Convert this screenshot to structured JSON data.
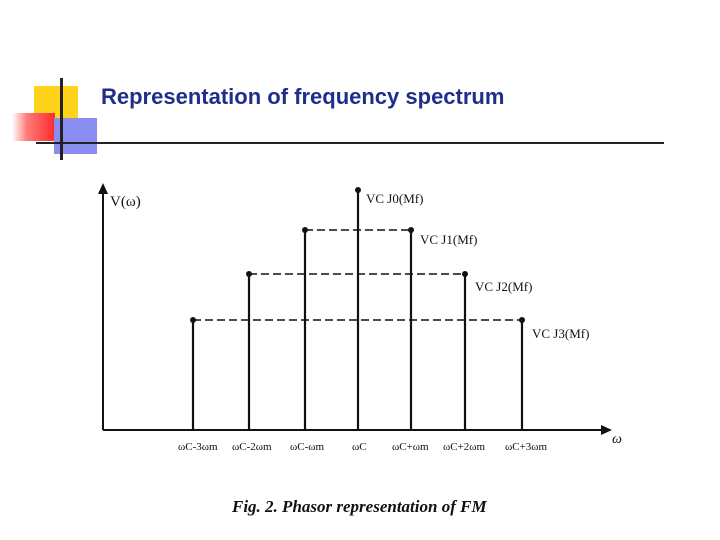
{
  "slide": {
    "title": "Representation of frequency spectrum",
    "accent_colors": {
      "yellow": "#ffd21a",
      "red": "#ff2a2a",
      "blue": "#8b8cf0",
      "title": "#1f2e8a"
    }
  },
  "figure": {
    "y_axis_label": "V(ω)",
    "x_axis_label": "ω",
    "caption": "Fig. 2. Phasor representation of FM",
    "components": [
      {
        "id": "c-3",
        "x_label": "ωC-3ωm",
        "level": 3,
        "amp_label": ""
      },
      {
        "id": "c-2",
        "x_label": "ωC-2ωm",
        "level": 2,
        "amp_label": ""
      },
      {
        "id": "c-1",
        "x_label": "ωC-ωm",
        "level": 1,
        "amp_label": ""
      },
      {
        "id": "c0",
        "x_label": "ωC",
        "level": 0,
        "amp_label": "VC J0(Mf)"
      },
      {
        "id": "c1",
        "x_label": "ωC+ωm",
        "level": 1,
        "amp_label": "VC J1(Mf)"
      },
      {
        "id": "c2",
        "x_label": "ωC+2ωm",
        "level": 2,
        "amp_label": "VC J2(Mf)"
      },
      {
        "id": "c3",
        "x_label": "ωC+3ωm",
        "level": 3,
        "amp_label": "VC J3(Mf)"
      }
    ]
  }
}
